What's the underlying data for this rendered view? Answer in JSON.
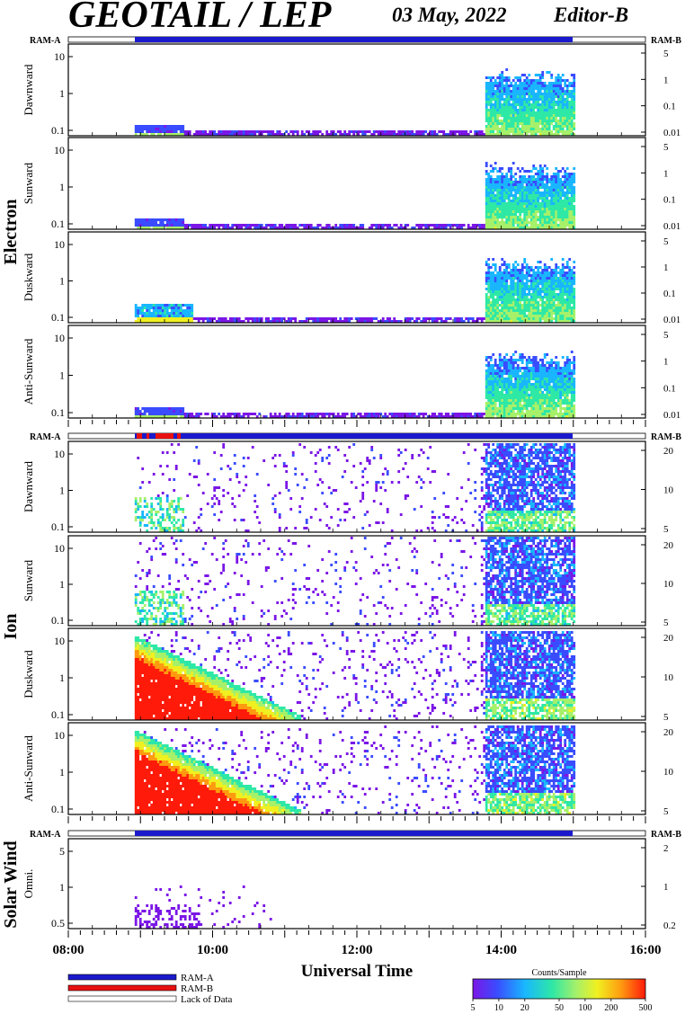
{
  "header": {
    "title": "GEOTAIL / LEP",
    "date": "03 May, 2022",
    "editor": "Editor-B"
  },
  "groups": {
    "electron": "Electron",
    "ion": "Ion",
    "solar_wind": "Solar Wind"
  },
  "ram_labels": {
    "left": "RAM-A",
    "right": "RAM-B"
  },
  "colors": {
    "ram_a": "#1a1acc",
    "ram_b": "#e81010",
    "lack": "#ffffff",
    "colorbar": [
      "#7b16e6",
      "#3a4cff",
      "#19b6ff",
      "#2ee8a6",
      "#a6f06a",
      "#f0f020",
      "#ff9a10",
      "#ff1a0a"
    ]
  },
  "chart_data": {
    "type": "heatmap",
    "xlabel": "Universal Time",
    "x_ticks": [
      "08:00",
      "10:00",
      "12:00",
      "14:00",
      "16:00"
    ],
    "x_range_hours": [
      8,
      16
    ],
    "data_span_hours": [
      8.92,
      15.0
    ],
    "panels": [
      {
        "group": "Electron",
        "label": "Dawnward",
        "left_ticks": [
          "10",
          "1",
          "0.1"
        ],
        "right_ticks": [
          "5",
          "1",
          "0.1",
          "0.01"
        ],
        "pattern": "electron"
      },
      {
        "group": "Electron",
        "label": "Sunward",
        "left_ticks": [
          "10",
          "1",
          "0.1"
        ],
        "right_ticks": [
          "5",
          "1",
          "0.1",
          "0.01"
        ],
        "pattern": "electron"
      },
      {
        "group": "Electron",
        "label": "Duskward",
        "left_ticks": [
          "10",
          "1",
          "0.1"
        ],
        "right_ticks": [
          "5",
          "1",
          "0.1",
          "0.01"
        ],
        "pattern": "electron"
      },
      {
        "group": "Electron",
        "label": "Anti-Sunward",
        "left_ticks": [
          "10",
          "1",
          "0.1"
        ],
        "right_ticks": [
          "5",
          "1",
          "0.1",
          "0.01"
        ],
        "pattern": "electron"
      },
      {
        "group": "Ion",
        "label": "Dawnward",
        "left_ticks": [
          "10",
          "1",
          "0.1"
        ],
        "right_ticks": [
          "20",
          "10",
          "5"
        ],
        "pattern": "ion_weak"
      },
      {
        "group": "Ion",
        "label": "Sunward",
        "left_ticks": [
          "10",
          "1",
          "0.1"
        ],
        "right_ticks": [
          "20",
          "10",
          "5"
        ],
        "pattern": "ion_weak"
      },
      {
        "group": "Ion",
        "label": "Duskward",
        "left_ticks": [
          "10",
          "1",
          "0.1"
        ],
        "right_ticks": [
          "20",
          "10",
          "5"
        ],
        "pattern": "ion_strong"
      },
      {
        "group": "Ion",
        "label": "Anti-Sunward",
        "left_ticks": [
          "10",
          "1",
          "0.1"
        ],
        "right_ticks": [
          "20",
          "10",
          "5"
        ],
        "pattern": "ion_strong"
      },
      {
        "group": "Solar Wind",
        "label": "Omni.",
        "left_ticks": [
          "5",
          "1",
          "0.5"
        ],
        "right_ticks": [
          "2",
          "1",
          "0.2"
        ],
        "pattern": "solar"
      }
    ],
    "legend": [
      {
        "label": "RAM-A",
        "color": "#1a1acc"
      },
      {
        "label": "RAM-B",
        "color": "#e81010"
      },
      {
        "label": "Lack of Data",
        "color": "#ffffff"
      }
    ],
    "colorbar": {
      "title": "Counts/Sample",
      "ticks": [
        "5",
        "10",
        "20",
        "50",
        "100",
        "200",
        "500"
      ]
    }
  }
}
